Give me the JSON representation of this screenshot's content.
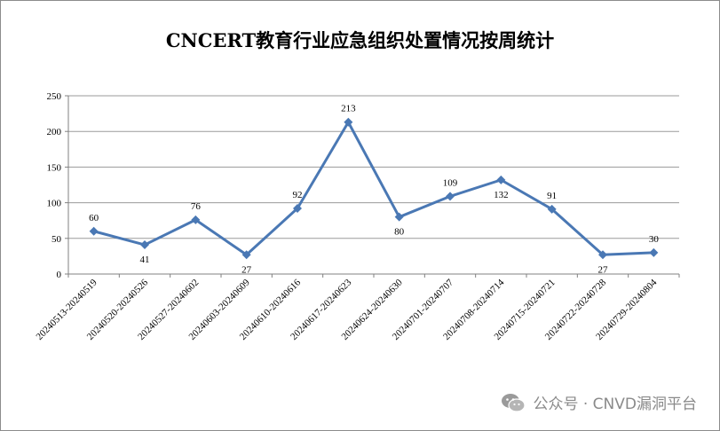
{
  "chart_data": {
    "type": "line",
    "title": "CNCERT教育行业应急组织处置情况按周统计",
    "xlabel": "",
    "ylabel": "",
    "ylim": [
      0,
      250
    ],
    "yticks": [
      "0",
      "50",
      "100",
      "150",
      "200",
      "250"
    ],
    "grid": true,
    "legend": "none",
    "categories": [
      "20240513-20240519",
      "20240520-20240526",
      "20240527-20240602",
      "20240603-20240609",
      "20240610-20240616",
      "20240617-20240623",
      "20240624-20240630",
      "20240701-20240707",
      "20240708-20240714",
      "20240715-20240721",
      "20240722-20240728",
      "20240729-20240804"
    ],
    "series": [
      {
        "values": [
          60,
          41,
          76,
          27,
          92,
          213,
          80,
          109,
          132,
          91,
          27,
          30
        ],
        "color": "#4a78b4",
        "marker": "diamond"
      }
    ],
    "data_labels": [
      "60",
      "41",
      "76",
      "27",
      "92",
      "213",
      "80",
      "109",
      "132",
      "91",
      "27",
      "30"
    ]
  },
  "watermark": {
    "text": "公众号 · CNVD漏洞平台",
    "icon": "wechat-icon"
  }
}
